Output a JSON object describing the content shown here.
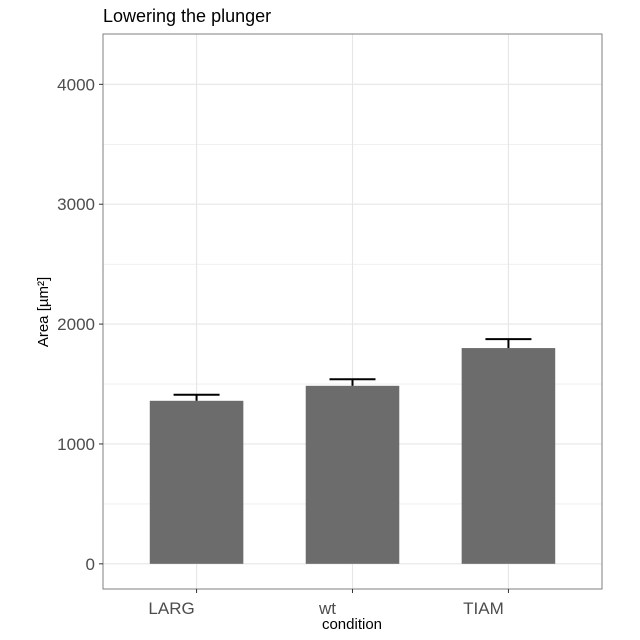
{
  "chart_data": {
    "type": "bar",
    "title": "Lowering the plunger",
    "xlabel": "condition",
    "ylabel": "Area [µm²]",
    "categories": [
      "LARG",
      "wt",
      "TIAM"
    ],
    "values": [
      1360,
      1485,
      1800
    ],
    "error_upper": [
      1410,
      1540,
      1875
    ],
    "ylim": [
      -210,
      4420
    ],
    "yticks": [
      0,
      1000,
      2000,
      3000,
      4000
    ],
    "ytick_labels": [
      "0",
      "1000",
      "2000",
      "3000",
      "4000"
    ],
    "grid": true,
    "legend": "none",
    "colors": {
      "bar": "#6c6c6c",
      "errorbar": "#000000",
      "grid": "#e6e6e6",
      "panel_border": "#7f7f7f"
    }
  }
}
